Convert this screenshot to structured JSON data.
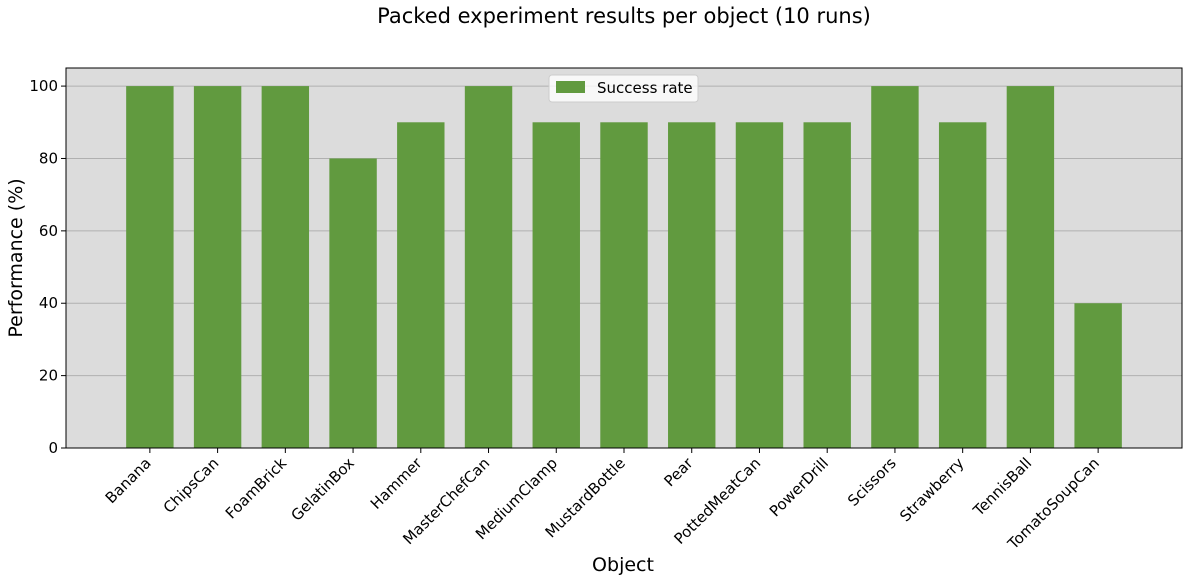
{
  "chart_data": {
    "type": "bar",
    "title": "Packed experiment results per object (10 runs)",
    "xlabel": "Object",
    "ylabel": "Performance (%)",
    "categories": [
      "Banana",
      "ChipsCan",
      "FoamBrick",
      "GelatinBox",
      "Hammer",
      "MasterChefCan",
      "MediumClamp",
      "MustardBottle",
      "Pear",
      "PottedMeatCan",
      "PowerDrill",
      "Scissors",
      "Strawberry",
      "TennisBall",
      "TomatoSoupCan"
    ],
    "series": [
      {
        "name": "Success rate",
        "color": "#619a3f",
        "values": [
          100,
          100,
          100,
          80,
          90,
          100,
          90,
          90,
          90,
          90,
          90,
          100,
          90,
          100,
          40
        ]
      }
    ],
    "ylim": [
      0,
      105
    ],
    "yticks": [
      0,
      20,
      40,
      60,
      80,
      100
    ],
    "grid": "horizontal",
    "legend_position": "top-center",
    "plot_background": "#dcdcdc",
    "grid_color": "#b0b0b0"
  }
}
